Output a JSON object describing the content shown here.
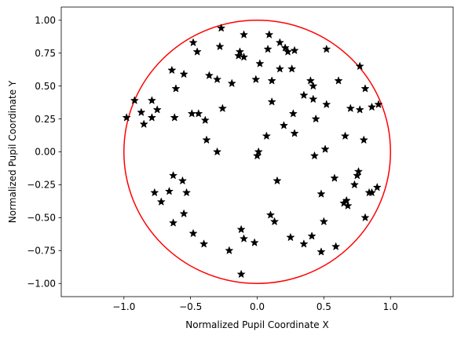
{
  "chart_data": {
    "type": "scatter",
    "xlabel": "Normalized Pupil Coordinate X",
    "ylabel": "Normalized Pupil Coordinate Y",
    "xlim": [
      -1.47,
      1.47
    ],
    "ylim": [
      -1.1,
      1.1
    ],
    "x_ticks": [
      -1.0,
      -0.5,
      0.0,
      0.5,
      1.0
    ],
    "x_tick_labels": [
      "−1.0",
      "−0.5",
      "0.0",
      "0.5",
      "1.0"
    ],
    "y_ticks": [
      -1.0,
      -0.75,
      -0.5,
      -0.25,
      0.0,
      0.25,
      0.5,
      0.75,
      1.0
    ],
    "y_tick_labels": [
      "−1.00",
      "−0.75",
      "−0.50",
      "−0.25",
      "0.00",
      "0.25",
      "0.50",
      "0.75",
      "1.00"
    ],
    "grid": false,
    "circle": {
      "center": [
        0,
        0
      ],
      "radius": 1.0,
      "color": "#ff0000"
    },
    "marker": {
      "shape": "star",
      "color": "#000000"
    },
    "points": [
      [
        -0.27,
        0.94
      ],
      [
        -0.48,
        0.83
      ],
      [
        -0.1,
        0.89
      ],
      [
        -0.13,
        0.76
      ],
      [
        0.09,
        0.89
      ],
      [
        0.17,
        0.83
      ],
      [
        -0.45,
        0.76
      ],
      [
        -0.28,
        0.8
      ],
      [
        -0.14,
        0.73
      ],
      [
        0.08,
        0.78
      ],
      [
        0.28,
        0.77
      ],
      [
        0.52,
        0.78
      ],
      [
        0.21,
        0.79
      ],
      [
        0.23,
        0.76
      ],
      [
        0.77,
        0.65
      ],
      [
        -0.1,
        0.72
      ],
      [
        0.02,
        0.67
      ],
      [
        0.17,
        0.63
      ],
      [
        0.26,
        0.63
      ],
      [
        -0.64,
        0.62
      ],
      [
        -0.55,
        0.59
      ],
      [
        -0.36,
        0.58
      ],
      [
        -0.3,
        0.55
      ],
      [
        -0.19,
        0.52
      ],
      [
        -0.01,
        0.55
      ],
      [
        0.11,
        0.54
      ],
      [
        0.61,
        0.54
      ],
      [
        0.4,
        0.54
      ],
      [
        0.42,
        0.5
      ],
      [
        0.81,
        0.48
      ],
      [
        -0.61,
        0.48
      ],
      [
        0.35,
        0.43
      ],
      [
        0.42,
        0.4
      ],
      [
        -0.92,
        0.39
      ],
      [
        -0.79,
        0.39
      ],
      [
        0.11,
        0.38
      ],
      [
        0.52,
        0.36
      ],
      [
        0.91,
        0.36
      ],
      [
        0.86,
        0.34
      ],
      [
        0.7,
        0.33
      ],
      [
        0.77,
        0.32
      ],
      [
        -0.75,
        0.32
      ],
      [
        -0.26,
        0.33
      ],
      [
        -0.87,
        0.3
      ],
      [
        -0.49,
        0.29
      ],
      [
        -0.44,
        0.29
      ],
      [
        0.27,
        0.29
      ],
      [
        -0.98,
        0.26
      ],
      [
        -0.79,
        0.26
      ],
      [
        -0.62,
        0.26
      ],
      [
        -0.39,
        0.24
      ],
      [
        0.44,
        0.25
      ],
      [
        -0.85,
        0.21
      ],
      [
        0.2,
        0.2
      ],
      [
        0.28,
        0.14
      ],
      [
        0.07,
        0.12
      ],
      [
        0.66,
        0.12
      ],
      [
        -0.38,
        0.09
      ],
      [
        0.8,
        0.09
      ],
      [
        -0.3,
        0.0
      ],
      [
        0.01,
        0.0
      ],
      [
        0.51,
        0.02
      ],
      [
        0.0,
        -0.03
      ],
      [
        0.43,
        -0.03
      ],
      [
        0.76,
        -0.15
      ],
      [
        0.75,
        -0.18
      ],
      [
        -0.63,
        -0.18
      ],
      [
        0.58,
        -0.2
      ],
      [
        0.15,
        -0.22
      ],
      [
        -0.56,
        -0.22
      ],
      [
        0.73,
        -0.25
      ],
      [
        0.9,
        -0.27
      ],
      [
        -0.77,
        -0.31
      ],
      [
        -0.66,
        -0.3
      ],
      [
        -0.53,
        -0.31
      ],
      [
        0.48,
        -0.32
      ],
      [
        0.84,
        -0.31
      ],
      [
        0.86,
        -0.31
      ],
      [
        -0.72,
        -0.38
      ],
      [
        0.67,
        -0.37
      ],
      [
        0.65,
        -0.39
      ],
      [
        0.68,
        -0.41
      ],
      [
        -0.55,
        -0.47
      ],
      [
        0.1,
        -0.48
      ],
      [
        0.81,
        -0.5
      ],
      [
        0.13,
        -0.53
      ],
      [
        0.5,
        -0.53
      ],
      [
        -0.63,
        -0.54
      ],
      [
        -0.48,
        -0.62
      ],
      [
        0.25,
        -0.65
      ],
      [
        -0.4,
        -0.7
      ],
      [
        0.41,
        -0.64
      ],
      [
        0.35,
        -0.7
      ],
      [
        0.59,
        -0.72
      ],
      [
        -0.12,
        -0.59
      ],
      [
        -0.1,
        -0.66
      ],
      [
        -0.02,
        -0.69
      ],
      [
        -0.21,
        -0.75
      ],
      [
        0.48,
        -0.76
      ],
      [
        -0.12,
        -0.93
      ]
    ]
  }
}
